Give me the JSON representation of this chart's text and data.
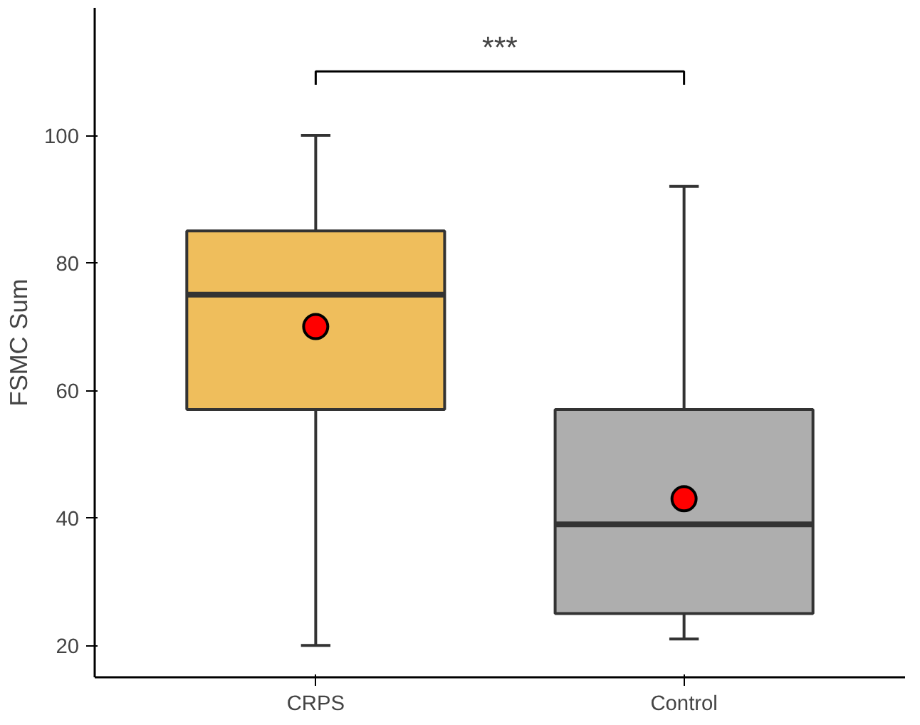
{
  "chart_data": {
    "type": "box",
    "ylabel": "FSMC Sum",
    "categories": [
      "CRPS",
      "Control"
    ],
    "colors": [
      "#e8a317",
      "#8c8c8c"
    ],
    "boxes": [
      {
        "low": 20,
        "q1": 57,
        "median": 75,
        "q3": 85,
        "high": 100,
        "mean": 70
      },
      {
        "low": 21,
        "q1": 25,
        "median": 39,
        "q3": 57,
        "high": 92,
        "mean": 43
      }
    ],
    "ylim": [
      15,
      120
    ],
    "yticks": [
      20,
      40,
      60,
      80,
      100
    ],
    "annotations": [
      "***"
    ],
    "grid": false
  }
}
